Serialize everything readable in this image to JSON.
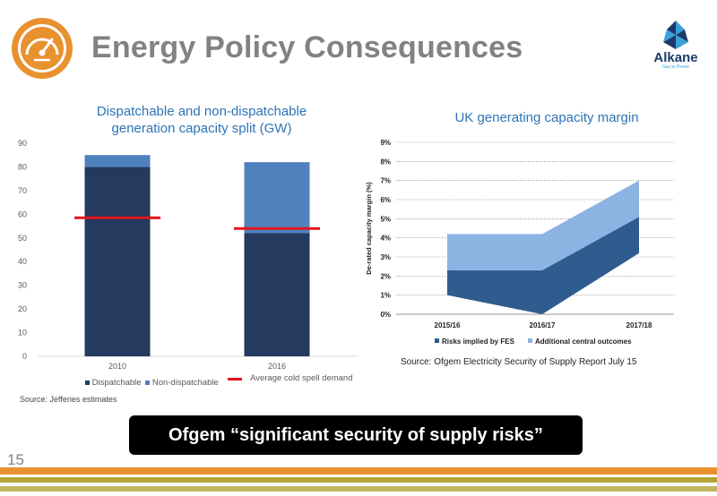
{
  "slide": {
    "title": "Energy Policy Consequences",
    "page_number": "15",
    "banner": "Ofgem “significant security of supply risks”",
    "logo": {
      "text": "Alkane",
      "tagline": "Gas to Power"
    },
    "icon": "speedometer-icon",
    "colors": {
      "orange": "#e8912f",
      "olive": "#b5a436",
      "title_gray": "#808285",
      "navy": "#243a5e",
      "steel_blue": "#4f81bd",
      "red": "#e0141c",
      "dark_blue_area": "#2f5c8f",
      "light_blue_area": "#8db3e2"
    }
  },
  "chart_data": [
    {
      "type": "bar",
      "stacked": true,
      "title": "Dispatchable and non-dispatchable generation capacity split (GW)",
      "categories": [
        "2010",
        "2016"
      ],
      "series": [
        {
          "name": "Dispatchable",
          "values": [
            80,
            52
          ],
          "color": "#243a5e"
        },
        {
          "name": "Non-dispatchable",
          "values": [
            5,
            30
          ],
          "color": "#4f81bd"
        }
      ],
      "reference_lines": [
        {
          "name": "Average cold spell demand",
          "values": [
            58.5,
            54
          ],
          "color": "#e0141c"
        }
      ],
      "ylim": [
        0,
        90
      ],
      "yticks": [
        "0",
        "10",
        "20",
        "30",
        "40",
        "50",
        "60",
        "70",
        "80",
        "90"
      ],
      "legend": [
        "Dispatchable",
        "Non-dispatchable",
        "Average cold spell demand"
      ],
      "legend_position": "bottom",
      "source": "Source: Jefferies estimates"
    },
    {
      "type": "area",
      "stacked": true,
      "title": "UK generating capacity margin",
      "ylabel": "De-rated capacity margin (%)",
      "x": [
        "2015/16",
        "2016/17",
        "2017/18"
      ],
      "series": [
        {
          "name": "Risks implied by FES",
          "lower": [
            1.0,
            0.0,
            3.2
          ],
          "upper": [
            2.3,
            2.3,
            5.1
          ],
          "color": "#2f5c8f"
        },
        {
          "name": "Additional central outcomes",
          "lower": [
            2.3,
            2.3,
            5.1
          ],
          "upper": [
            4.2,
            4.2,
            7.0
          ],
          "color": "#8db3e2"
        }
      ],
      "ylim": [
        0,
        9
      ],
      "yticks": [
        "0%",
        "1%",
        "2%",
        "3%",
        "4%",
        "5%",
        "6%",
        "7%",
        "8%",
        "9%"
      ],
      "grid": true,
      "legend_position": "bottom",
      "source": "Source: Ofgem Electricity Security of Supply Report July 15"
    }
  ]
}
